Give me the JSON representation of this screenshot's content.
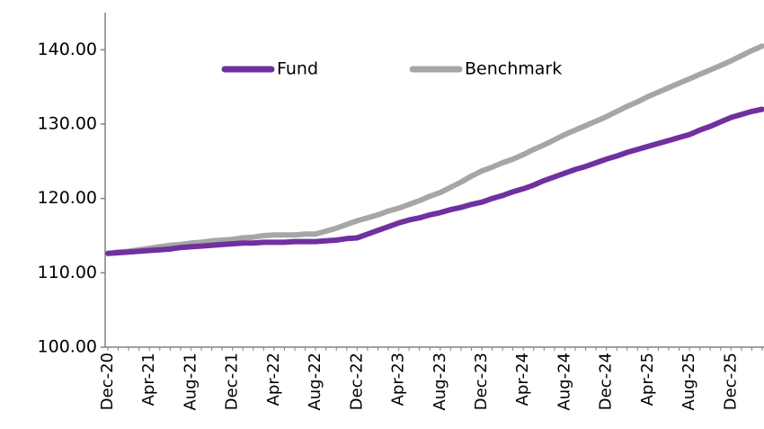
{
  "chart_data": {
    "type": "line",
    "categories": [
      "Dec-20",
      null,
      null,
      null,
      "Apr-21",
      null,
      null,
      null,
      "Aug-21",
      null,
      null,
      null,
      "Dec-21",
      null,
      null,
      null,
      "Apr-22",
      null,
      null,
      null,
      "Aug-22",
      null,
      null,
      null,
      "Dec-22",
      null,
      null,
      null,
      "Apr-23",
      null,
      null,
      null,
      "Aug-23",
      null,
      null,
      null,
      "Dec-23",
      null,
      null,
      null,
      "Apr-24",
      null,
      null,
      null,
      "Aug-24",
      null,
      null,
      null,
      "Dec-24",
      null,
      null,
      null,
      "Apr-25",
      null,
      null,
      null,
      "Aug-25",
      null,
      null,
      null,
      "Dec-25",
      null,
      null,
      null
    ],
    "series": [
      {
        "name": "Fund",
        "color": "#7030a0",
        "values": [
          112.6,
          112.7,
          112.8,
          112.9,
          113.0,
          113.1,
          113.2,
          113.4,
          113.5,
          113.6,
          113.7,
          113.8,
          113.9,
          114.0,
          114.0,
          114.1,
          114.1,
          114.1,
          114.2,
          114.2,
          114.2,
          114.3,
          114.4,
          114.6,
          114.7,
          115.2,
          115.7,
          116.2,
          116.7,
          117.1,
          117.4,
          117.8,
          118.1,
          118.5,
          118.8,
          119.2,
          119.5,
          120.0,
          120.4,
          120.9,
          121.3,
          121.8,
          122.4,
          122.9,
          123.4,
          123.9,
          124.3,
          124.8,
          125.3,
          125.7,
          126.2,
          126.6,
          127.0,
          127.4,
          127.8,
          128.2,
          128.6,
          129.2,
          129.7,
          130.3,
          130.9,
          131.3,
          131.7,
          132.0
        ]
      },
      {
        "name": "Benchmark",
        "color": "#a6a6a6",
        "values": [
          112.6,
          112.8,
          112.9,
          113.1,
          113.3,
          113.5,
          113.7,
          113.8,
          114.0,
          114.1,
          114.3,
          114.4,
          114.5,
          114.7,
          114.8,
          115.0,
          115.1,
          115.1,
          115.1,
          115.2,
          115.2,
          115.6,
          116.0,
          116.5,
          117.0,
          117.4,
          117.8,
          118.3,
          118.7,
          119.2,
          119.7,
          120.3,
          120.8,
          121.5,
          122.2,
          123.0,
          123.7,
          124.2,
          124.8,
          125.3,
          125.9,
          126.6,
          127.2,
          127.9,
          128.6,
          129.2,
          129.8,
          130.4,
          131.0,
          131.7,
          132.4,
          133.0,
          133.7,
          134.3,
          134.9,
          135.5,
          136.1,
          136.7,
          137.3,
          137.9,
          138.5,
          139.2,
          139.9,
          140.5
        ]
      }
    ],
    "ylim": [
      100,
      145
    ],
    "yticks": [
      {
        "value": 100,
        "label": "100.00"
      },
      {
        "value": 110,
        "label": "110.00"
      },
      {
        "value": 120,
        "label": "120.00"
      },
      {
        "value": 130,
        "label": "130.00"
      },
      {
        "value": 140,
        "label": "140.00"
      }
    ],
    "grid": false,
    "legend": "top"
  }
}
